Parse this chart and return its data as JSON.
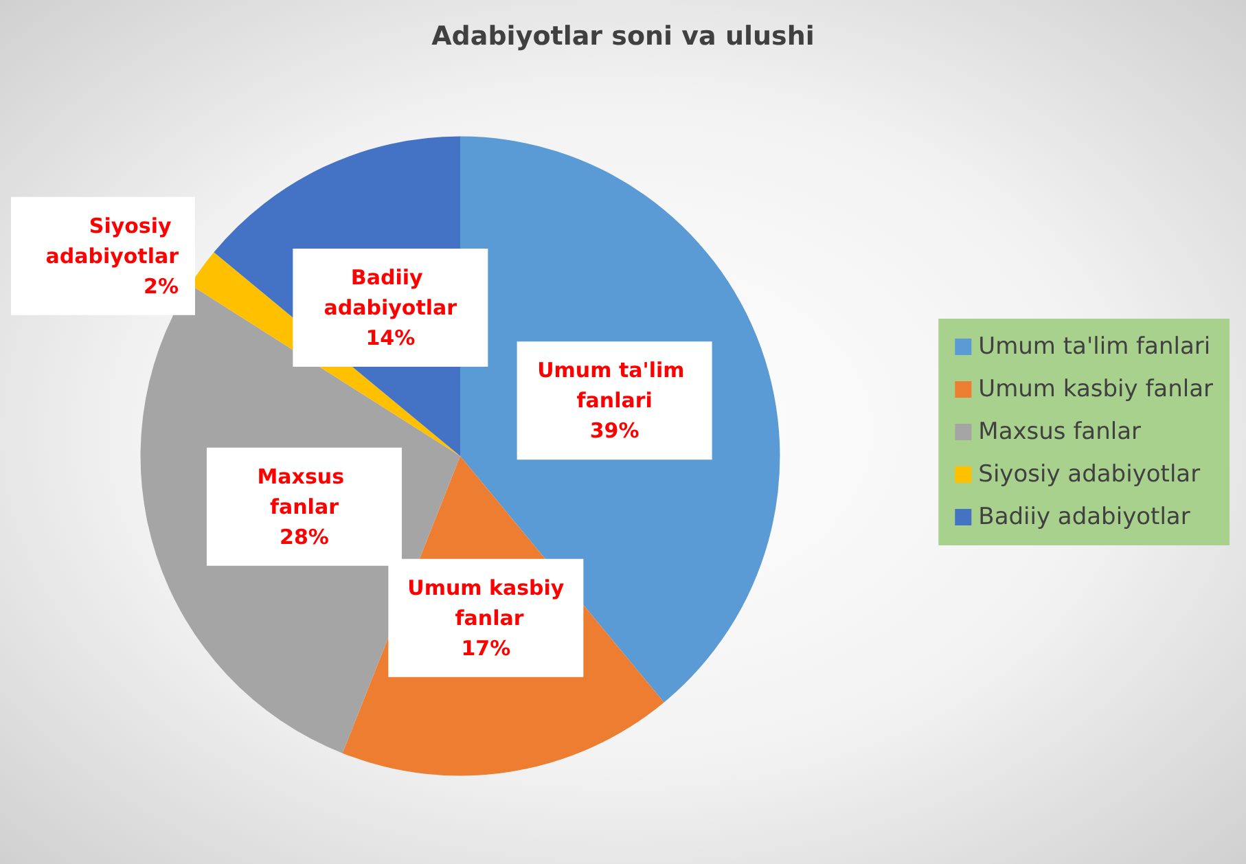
{
  "chart_data": {
    "type": "pie",
    "title": "Adabiyotlar soni va ulushi",
    "categories": [
      "Umum ta'lim fanlari",
      "Umum kasbiy fanlar",
      "Maxsus fanlar",
      "Siyosiy adabiyotlar",
      "Badiiy adabiyotlar"
    ],
    "values": [
      39,
      17,
      28,
      2,
      14
    ],
    "colors": [
      "#5b9bd5",
      "#ed7d31",
      "#a5a5a5",
      "#ffc000",
      "#4472c4"
    ],
    "value_labels": [
      "39%",
      "17%",
      "28%",
      "2%",
      "14%"
    ],
    "legend": "right"
  }
}
